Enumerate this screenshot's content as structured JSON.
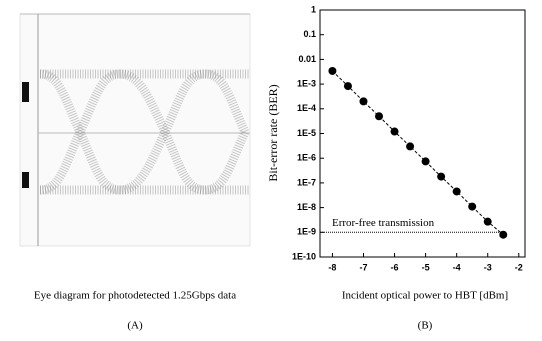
{
  "panel_a": {
    "caption": "Eye diagram for photodetected 1.25Gbps data",
    "label": "(A)"
  },
  "panel_b": {
    "label": "(B)"
  },
  "chart_data": {
    "type": "line",
    "log_y": true,
    "xlabel": "Incident optical power to HBT [dBm]",
    "ylabel": "Bit-error rate (BER)",
    "x": [
      -8,
      -7.5,
      -7,
      -6.5,
      -6,
      -5.5,
      -5,
      -4.5,
      -4,
      -3.5,
      -3,
      -2.5
    ],
    "series": [
      {
        "color": "#000000",
        "values": [
          0.0034,
          0.00083,
          0.0002,
          5e-05,
          1.2e-05,
          3e-06,
          7.4e-07,
          1.8e-07,
          4.5e-08,
          1.1e-08,
          2.7e-09,
          8e-10
        ]
      }
    ],
    "xlim": [
      -8.4,
      -1.8
    ],
    "xticks": [
      -8,
      -7,
      -6,
      -5,
      -4,
      -3,
      -2
    ],
    "ylim": [
      1e-10,
      1
    ],
    "yticks": [
      1,
      0.1,
      0.01,
      {
        "value": 0.001,
        "label": "1E-3"
      },
      {
        "value": 0.0001,
        "label": "1E-4"
      },
      {
        "value": 1e-05,
        "label": "1E-5"
      },
      {
        "value": 1e-06,
        "label": "1E-6"
      },
      {
        "value": 1e-07,
        "label": "1E-7"
      },
      {
        "value": 1e-08,
        "label": "1E-8"
      },
      {
        "value": 1e-09,
        "label": "1E-9"
      },
      {
        "value": 1e-10,
        "label": "1E-10"
      }
    ],
    "reference": {
      "value": 1e-09,
      "label": "Error-free transmission"
    }
  }
}
